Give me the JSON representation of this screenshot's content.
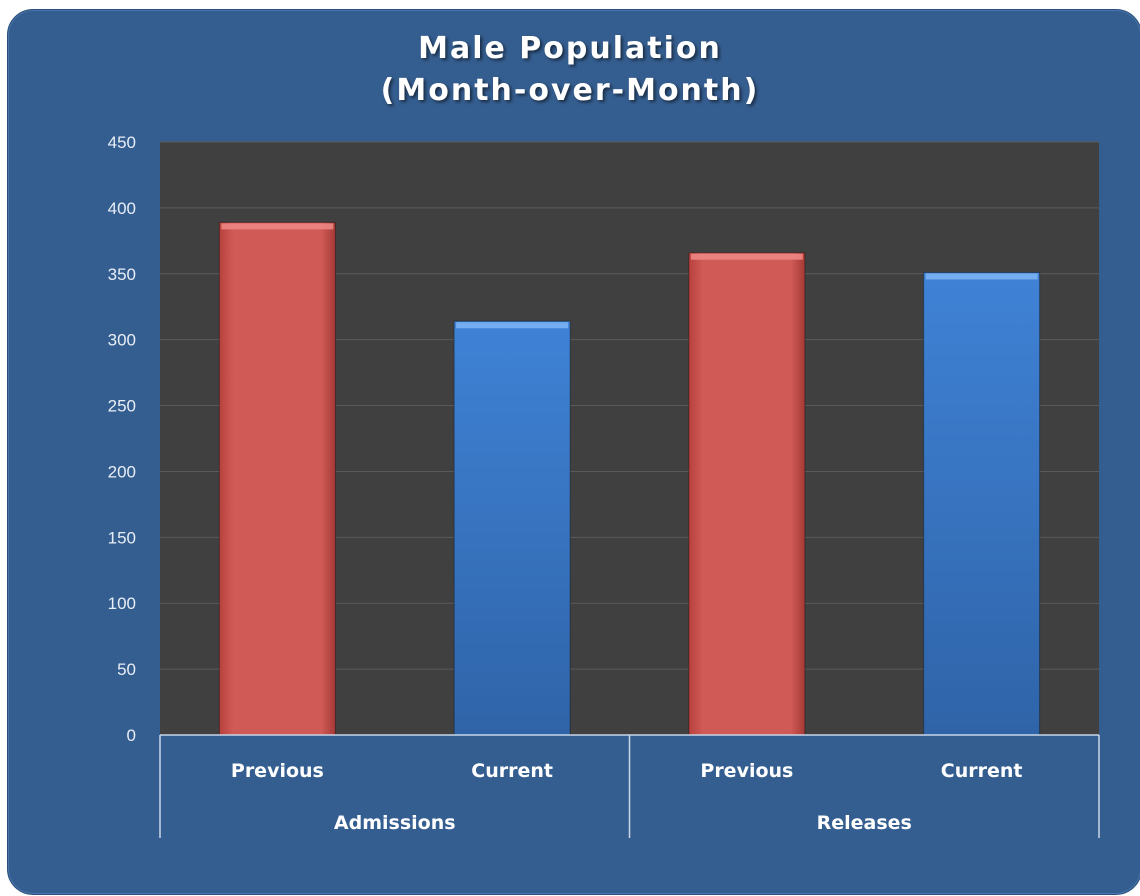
{
  "colors": {
    "frame": "#355e90",
    "plot_background": "#404040",
    "previous_bar": "#cd5753",
    "current_bar": "#3c7ccf",
    "gridline": "#5a5a5a",
    "text": "#ffffff"
  },
  "chart_data": {
    "type": "bar",
    "title_lines": [
      "Male Population",
      "(Month-over-Month)"
    ],
    "groups": [
      "Admissions",
      "Releases"
    ],
    "categories": [
      "Previous",
      "Current",
      "Previous",
      "Current"
    ],
    "values": [
      389,
      314,
      366,
      351
    ],
    "bar_colors": [
      "previous_bar",
      "current_bar",
      "previous_bar",
      "current_bar"
    ],
    "ylim": [
      0,
      450
    ],
    "yticks": [
      0,
      50,
      100,
      150,
      200,
      250,
      300,
      350,
      400,
      450
    ],
    "grid": true,
    "legend": "none"
  }
}
